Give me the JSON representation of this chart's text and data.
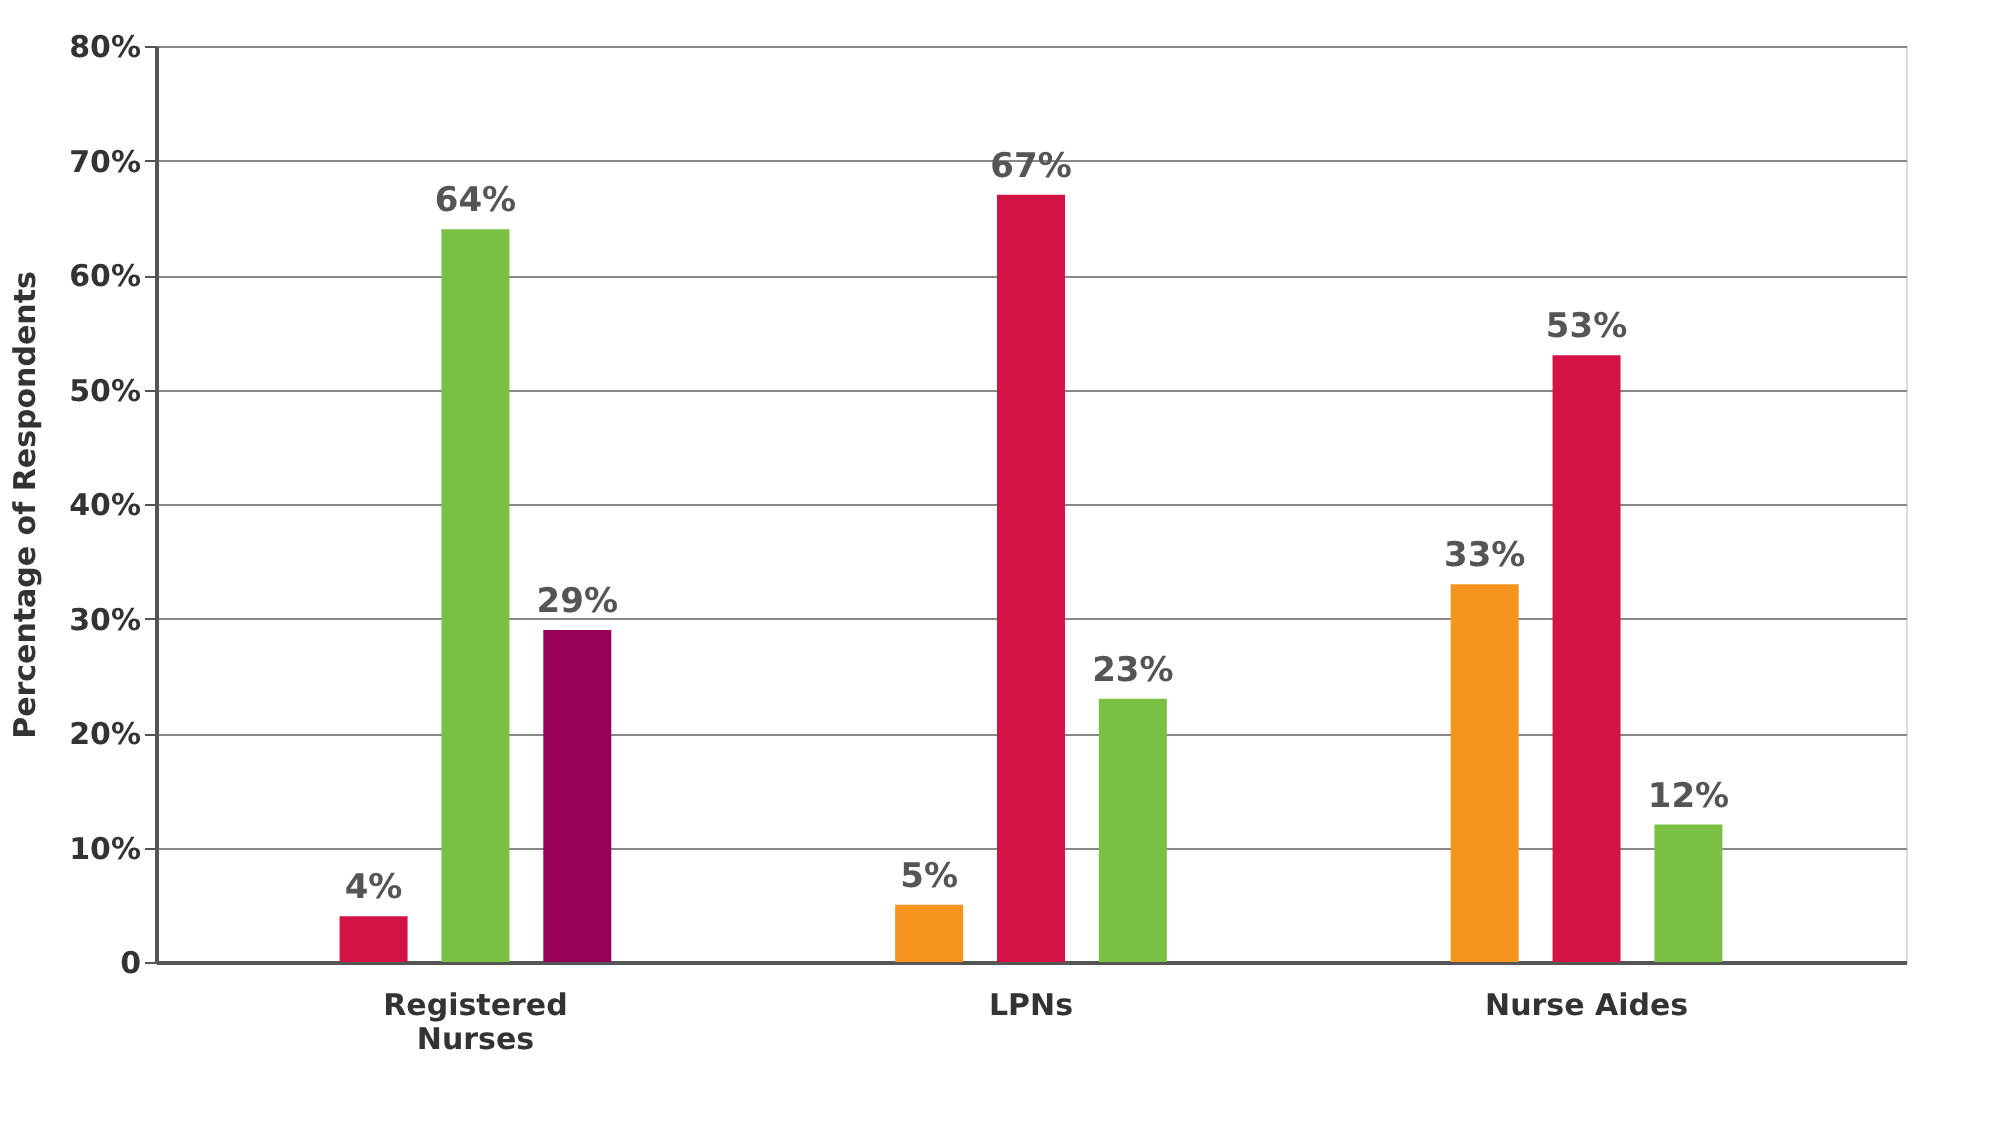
{
  "chart_data": {
    "type": "bar",
    "ylabel": "Percentage of Respondents",
    "categories": [
      "Registered Nurses",
      "LPNs",
      "Nurse Aides"
    ],
    "series": [
      {
        "color": "#f7941d",
        "values": [
          null,
          5,
          33
        ],
        "value_labels": [
          null,
          "5%",
          "33%"
        ]
      },
      {
        "color": "#d31245",
        "values": [
          4,
          67,
          53
        ],
        "value_labels": [
          "4%",
          "67%",
          "53%"
        ]
      },
      {
        "color": "#7ac143",
        "values": [
          64,
          23,
          12
        ],
        "value_labels": [
          "64%",
          "23%",
          "12%"
        ]
      },
      {
        "color": "#990059",
        "values": [
          29,
          null,
          null
        ],
        "value_labels": [
          "29%",
          null,
          null
        ]
      }
    ],
    "ylim": [
      0,
      80
    ],
    "yticks": [
      0,
      {
        "value": 10,
        "label": "10%"
      },
      {
        "value": 20,
        "label": "20%"
      },
      {
        "value": 30,
        "label": "30%"
      },
      {
        "value": 40,
        "label": "40%"
      },
      {
        "value": 50,
        "label": "50%"
      },
      {
        "value": 60,
        "label": "60%"
      },
      {
        "value": 70,
        "label": "70%"
      },
      {
        "value": 80,
        "label": "80%"
      }
    ],
    "grid": "y"
  }
}
